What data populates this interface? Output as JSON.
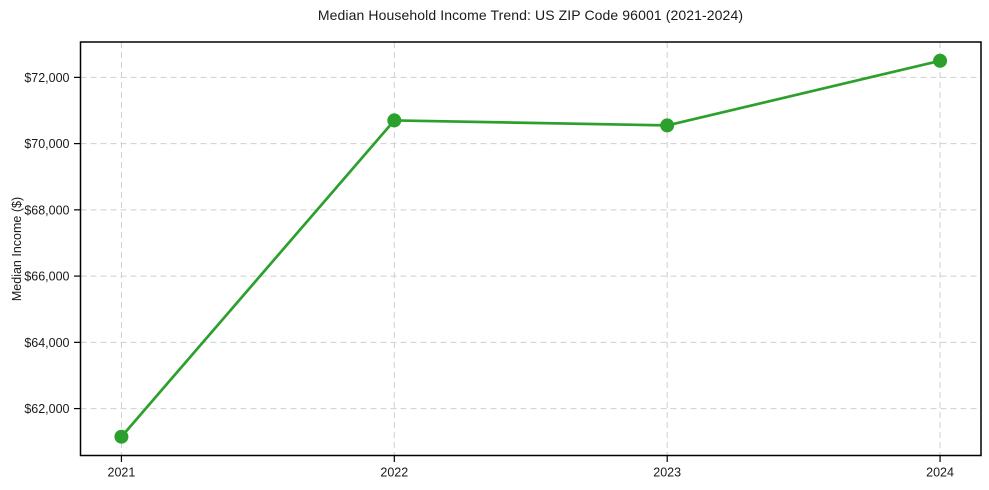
{
  "chart_data": {
    "type": "line",
    "title": "Median Household Income Trend: US ZIP Code 96001 (2021-2024)",
    "xlabel": "",
    "ylabel": "Median Income ($)",
    "x": [
      2021,
      2022,
      2023,
      2024
    ],
    "series": [
      {
        "values": [
          61150,
          70700,
          70550,
          72500
        ]
      }
    ],
    "xticks": [
      {
        "v": 2021,
        "label": "2021"
      },
      {
        "v": 2022,
        "label": "2022"
      },
      {
        "v": 2023,
        "label": "2023"
      },
      {
        "v": 2024,
        "label": "2024"
      }
    ],
    "yticks": [
      {
        "v": 62000,
        "label": "$62,000"
      },
      {
        "v": 64000,
        "label": "$64,000"
      },
      {
        "v": 66000,
        "label": "$66,000"
      },
      {
        "v": 68000,
        "label": "$68,000"
      },
      {
        "v": 70000,
        "label": "$70,000"
      },
      {
        "v": 72000,
        "label": "$72,000"
      }
    ],
    "xlim": [
      2020.85,
      2024.15
    ],
    "ylim": [
      60583,
      73068
    ],
    "grid": "dashed, both axes",
    "legend": "none",
    "colors": {
      "line": "#2ca02c",
      "marker": "#2ca02c",
      "grid": "#cfcfcf",
      "frame": "#000000",
      "text": "#1a1a1a",
      "background": "#ffffff"
    }
  }
}
